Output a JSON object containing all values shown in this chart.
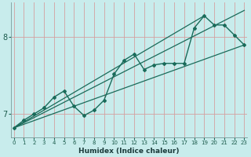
{
  "xlabel": "Humidex (Indice chaleur)",
  "bg_color": "#c8ecec",
  "grid_color_v": "#c8a8a8",
  "grid_color_h": "#c8a8a8",
  "line_color": "#1a6b5a",
  "x_ticks": [
    0,
    1,
    2,
    3,
    4,
    5,
    6,
    7,
    8,
    9,
    10,
    11,
    12,
    13,
    14,
    15,
    16,
    17,
    18,
    19,
    20,
    21,
    22,
    23
  ],
  "y_ticks": [
    7,
    8
  ],
  "ylim": [
    6.7,
    8.45
  ],
  "xlim": [
    -0.3,
    23.3
  ],
  "curve_x": [
    0,
    1,
    2,
    3,
    4,
    5,
    6,
    7,
    8,
    9,
    10,
    11,
    12,
    13,
    14,
    15,
    16,
    17,
    18,
    19,
    20,
    21,
    22,
    23
  ],
  "curve_y": [
    6.82,
    6.92,
    7.0,
    7.08,
    7.22,
    7.3,
    7.1,
    6.98,
    7.05,
    7.18,
    7.52,
    7.7,
    7.78,
    7.58,
    7.64,
    7.66,
    7.66,
    7.66,
    8.12,
    8.28,
    8.16,
    8.16,
    8.03,
    7.9
  ],
  "line2_x": [
    0,
    23
  ],
  "line2_y": [
    6.82,
    7.9
  ],
  "line3_x": [
    0,
    19
  ],
  "line3_y": [
    6.82,
    8.28
  ],
  "line4_x": [
    0,
    23
  ],
  "line4_y": [
    6.82,
    8.35
  ]
}
